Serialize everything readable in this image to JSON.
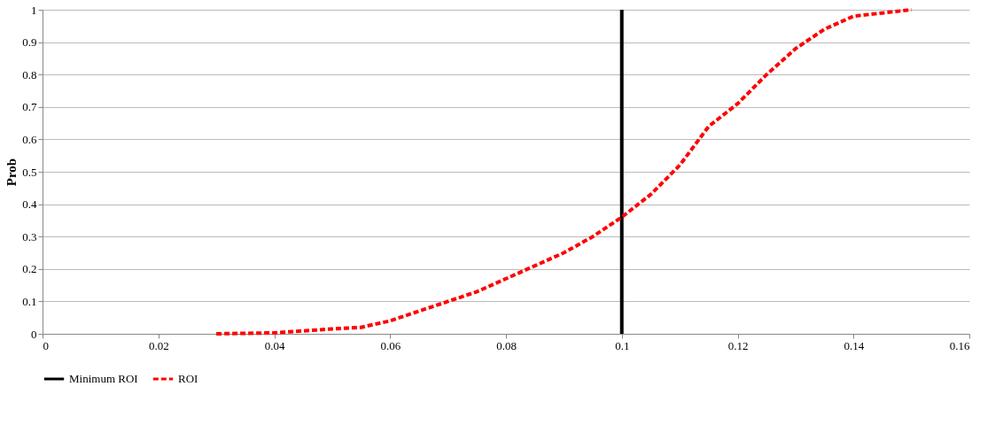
{
  "chart_data": {
    "type": "line",
    "ylabel": "Prob",
    "xlim": [
      0,
      0.16
    ],
    "xticks": [
      0,
      0.02,
      0.04,
      0.06,
      0.08,
      0.1,
      0.12,
      0.14,
      0.16
    ],
    "ylim": [
      0,
      1
    ],
    "yticks": [
      0,
      0.1,
      0.2,
      0.3,
      0.4,
      0.5,
      0.6,
      0.7,
      0.8,
      0.9,
      1
    ],
    "grid": "y",
    "legend": "bottom",
    "marker": "none",
    "series": [
      {
        "name": "Minimum ROI",
        "color": "#000000",
        "line_style": "solid",
        "x": [
          0.1,
          0.1
        ],
        "values": [
          0,
          1
        ]
      },
      {
        "name": "ROI",
        "color": "#ff0000",
        "line_style": "dashed",
        "x": [
          0.03,
          0.04,
          0.05,
          0.055,
          0.06,
          0.065,
          0.07,
          0.075,
          0.08,
          0.085,
          0.09,
          0.095,
          0.1,
          0.105,
          0.11,
          0.1125,
          0.115,
          0.12,
          0.125,
          0.13,
          0.135,
          0.14,
          0.145,
          0.15
        ],
        "values": [
          0,
          0.003,
          0.015,
          0.02,
          0.04,
          0.07,
          0.1,
          0.13,
          0.17,
          0.21,
          0.25,
          0.3,
          0.36,
          0.43,
          0.52,
          0.58,
          0.64,
          0.71,
          0.8,
          0.88,
          0.94,
          0.98,
          0.99,
          1.0
        ]
      }
    ]
  }
}
